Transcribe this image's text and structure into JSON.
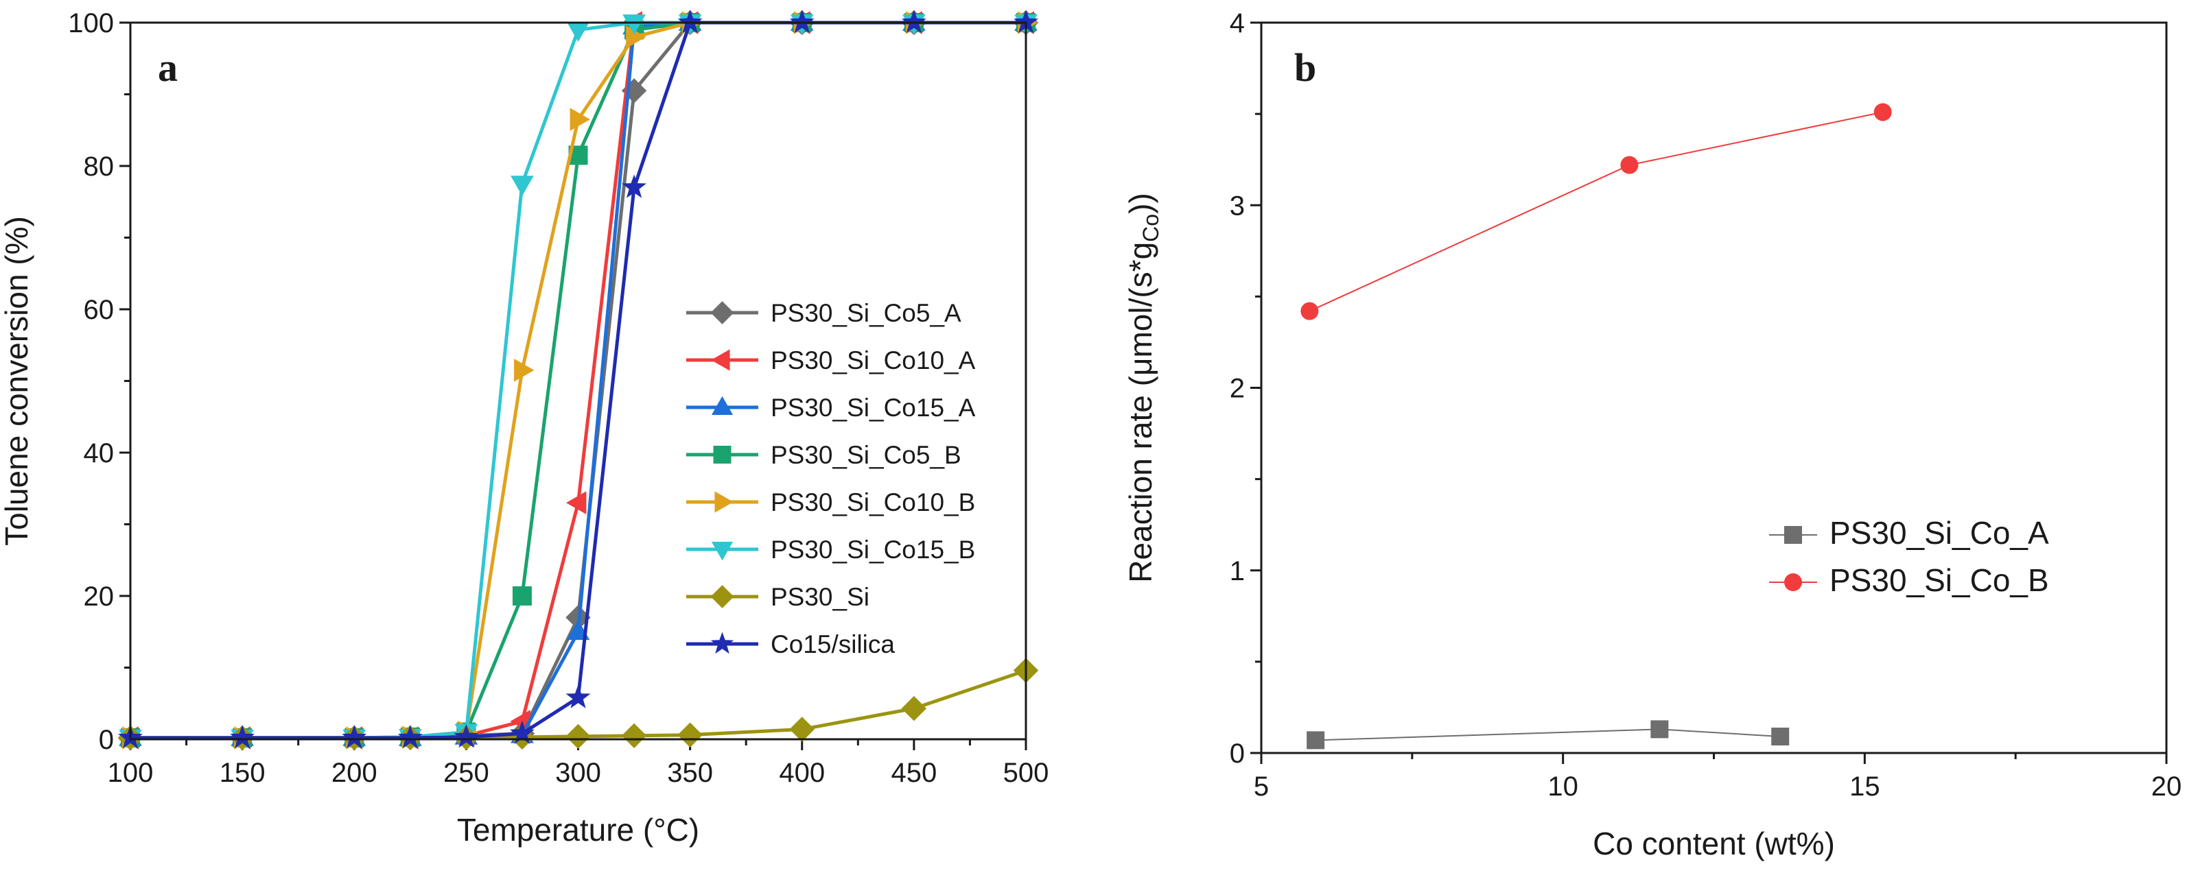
{
  "chart_data": [
    {
      "type": "line",
      "panel_label": "a",
      "xlabel": "Temperature (°C)",
      "ylabel": "Toluene conversion (%)",
      "xlim": [
        100,
        500
      ],
      "ylim": [
        0,
        100
      ],
      "x_ticks": [
        100,
        150,
        200,
        250,
        300,
        350,
        400,
        450,
        500
      ],
      "x_minor_ticks": [
        125,
        175,
        225,
        275,
        325,
        375,
        425,
        475
      ],
      "y_ticks": [
        0,
        20,
        40,
        60,
        80,
        100
      ],
      "y_minor_ticks": [
        10,
        30,
        50,
        70,
        90
      ],
      "legend_position": "center-right",
      "series": [
        {
          "name": "PS30_Si_Co5_A",
          "color": "#6e6e6e",
          "marker": "diamond",
          "x": [
            100,
            150,
            200,
            225,
            250,
            275,
            300,
            325,
            350,
            400,
            450,
            500
          ],
          "y": [
            0.2,
            0.2,
            0.2,
            0.2,
            0.5,
            0.8,
            17,
            90.5,
            100,
            100,
            100,
            100
          ]
        },
        {
          "name": "PS30_Si_Co10_A",
          "color": "#f03c3c",
          "marker": "triangle-left",
          "x": [
            100,
            150,
            200,
            225,
            250,
            275,
            300,
            325,
            350,
            400,
            450,
            500
          ],
          "y": [
            0.2,
            0.2,
            0.2,
            0.2,
            0.5,
            2.5,
            33,
            100,
            100,
            100,
            100,
            100
          ]
        },
        {
          "name": "PS30_Si_Co15_A",
          "color": "#1e6fd9",
          "marker": "triangle-up",
          "x": [
            100,
            150,
            200,
            225,
            250,
            275,
            300,
            325,
            350,
            400,
            450,
            500
          ],
          "y": [
            0.2,
            0.2,
            0.2,
            0.2,
            0.4,
            0.6,
            15,
            99.5,
            100,
            100,
            100,
            100
          ]
        },
        {
          "name": "PS30_Si_Co5_B",
          "color": "#1aa36e",
          "marker": "square",
          "x": [
            100,
            150,
            200,
            225,
            250,
            275,
            300,
            325,
            350,
            400,
            450,
            500
          ],
          "y": [
            0.2,
            0.2,
            0.2,
            0.3,
            1,
            20,
            81.5,
            99,
            100,
            100,
            100,
            100
          ]
        },
        {
          "name": "PS30_Si_Co10_B",
          "color": "#e0a21d",
          "marker": "triangle-right",
          "x": [
            100,
            150,
            200,
            225,
            250,
            275,
            300,
            325,
            350,
            400,
            450,
            500
          ],
          "y": [
            0.2,
            0.2,
            0.2,
            0.3,
            1,
            51.5,
            86.5,
            98,
            100,
            100,
            100,
            100
          ]
        },
        {
          "name": "PS30_Si_Co15_B",
          "color": "#2ec6d1",
          "marker": "triangle-down",
          "x": [
            100,
            150,
            200,
            225,
            250,
            275,
            300,
            325,
            350,
            400,
            450,
            500
          ],
          "y": [
            0.2,
            0.2,
            0.2,
            0.3,
            1,
            77.5,
            99,
            100,
            100,
            100,
            100,
            100
          ]
        },
        {
          "name": "PS30_Si",
          "color": "#9c9410",
          "marker": "diamond",
          "x": [
            100,
            150,
            200,
            225,
            250,
            275,
            300,
            325,
            350,
            400,
            450,
            500
          ],
          "y": [
            0.2,
            0.2,
            0.2,
            0.2,
            0.2,
            0.3,
            0.4,
            0.5,
            0.6,
            1.4,
            4.3,
            9.6
          ]
        },
        {
          "name": "Co15/silica",
          "color": "#1f2bb0",
          "marker": "star",
          "x": [
            100,
            150,
            200,
            225,
            250,
            275,
            300,
            325,
            350,
            400,
            450,
            500
          ],
          "y": [
            0.2,
            0.2,
            0.2,
            0.2,
            0.3,
            0.8,
            5.8,
            77,
            100,
            100,
            100,
            100
          ]
        }
      ]
    },
    {
      "type": "line",
      "panel_label": "b",
      "xlabel": "Co content (wt%)",
      "ylabel_main": "Reaction rate (μmol/(s*g",
      "ylabel_sub": "Co",
      "ylabel_end": "))",
      "xlim": [
        5,
        20
      ],
      "ylim": [
        0,
        4
      ],
      "x_ticks": [
        5,
        10,
        15,
        20
      ],
      "x_minor_ticks": [
        7.5,
        12.5,
        17.5
      ],
      "y_ticks": [
        0,
        1,
        2,
        3,
        4
      ],
      "y_minor_ticks": [
        0.5,
        1.5,
        2.5,
        3.5
      ],
      "legend_position": "lower-right",
      "series": [
        {
          "name": "PS30_Si_Co_A",
          "color": "#6e6e6e",
          "marker": "square",
          "x": [
            5.9,
            11.6,
            13.6
          ],
          "y": [
            0.07,
            0.13,
            0.09
          ]
        },
        {
          "name": "PS30_Si_Co_B",
          "color": "#f03c3c",
          "marker": "circle",
          "x": [
            5.8,
            11.1,
            15.3
          ],
          "y": [
            2.42,
            3.22,
            3.51
          ]
        }
      ]
    }
  ]
}
